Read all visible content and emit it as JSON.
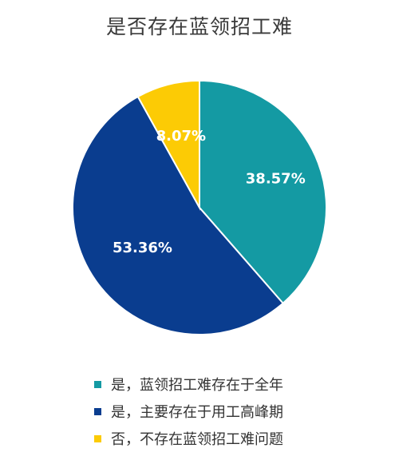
{
  "chart_data": {
    "type": "pie",
    "title": "是否存在蓝领招工难",
    "slices": [
      {
        "label": "是，蓝领招工难存在于全年",
        "value": 38.57,
        "display": "38.57%",
        "color": "#149aa3"
      },
      {
        "label": "是，主要存在于用工高峰期",
        "value": 53.36,
        "display": "53.36%",
        "color": "#0a3d8f"
      },
      {
        "label": "否，不存在蓝领招工难问题",
        "value": 8.07,
        "display": "8.07%",
        "color": "#fccb05"
      }
    ],
    "legend_position": "bottom"
  }
}
